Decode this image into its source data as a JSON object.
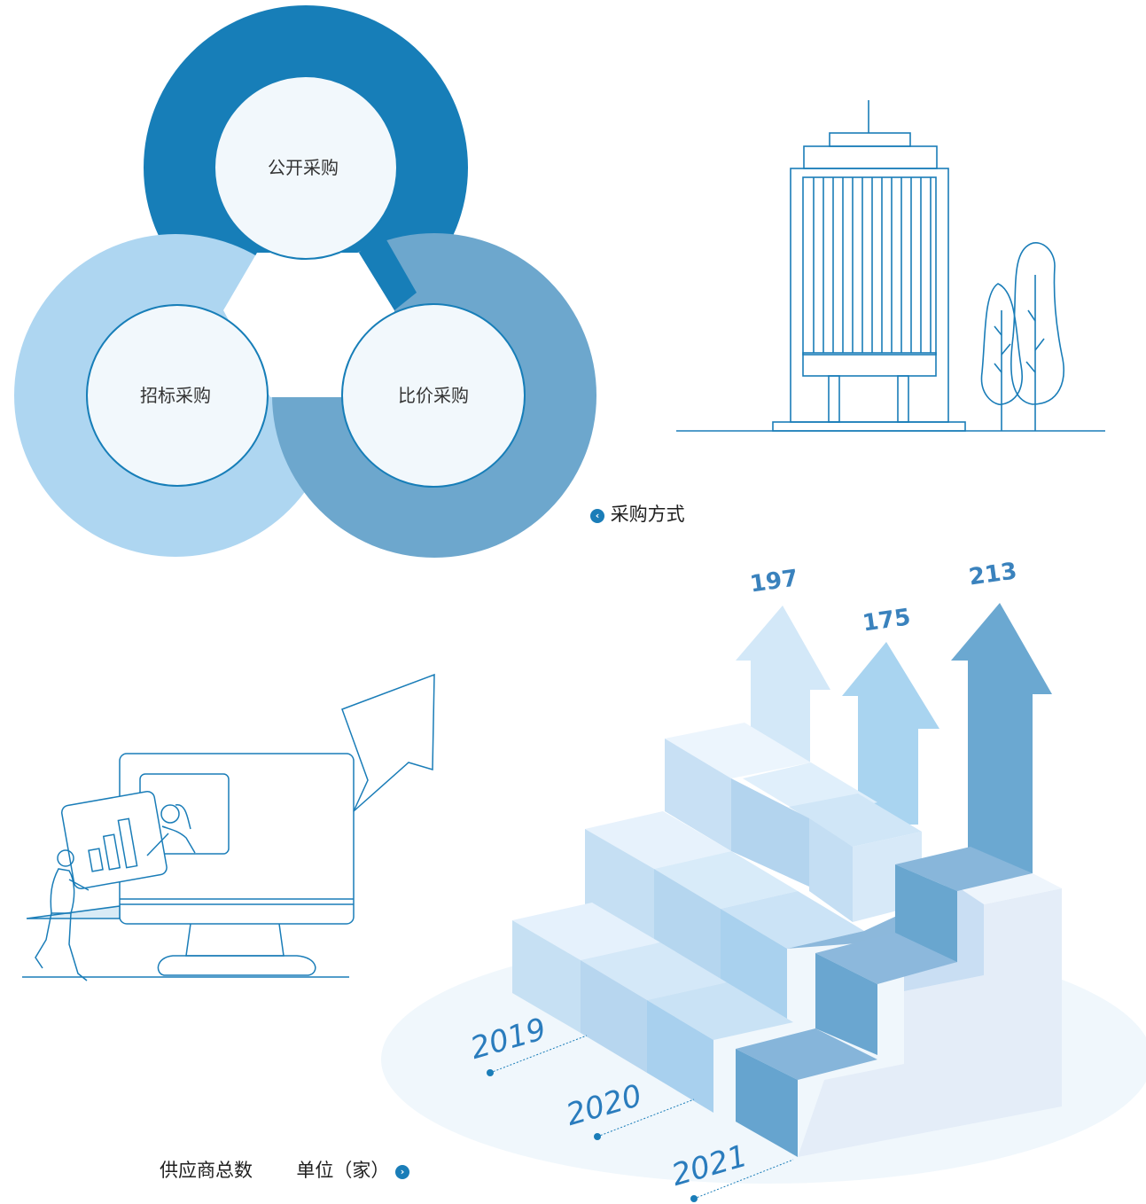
{
  "methods": {
    "items": [
      "公开采购",
      "招标采购",
      "比价采购"
    ],
    "caption": "采购方式",
    "colors": [
      "#177eb8",
      "#aed6f1",
      "#6da7cd"
    ]
  },
  "suppliers": {
    "caption_title": "供应商总数",
    "caption_unit": "单位（家）",
    "years": [
      "2019",
      "2020",
      "2021"
    ],
    "values": [
      "197",
      "175",
      "213"
    ]
  },
  "chart_data": {
    "type": "bar",
    "categories": [
      "2019",
      "2020",
      "2021"
    ],
    "values": [
      197,
      175,
      213
    ],
    "title": "供应商总数",
    "ylabel": "单位（家）"
  }
}
